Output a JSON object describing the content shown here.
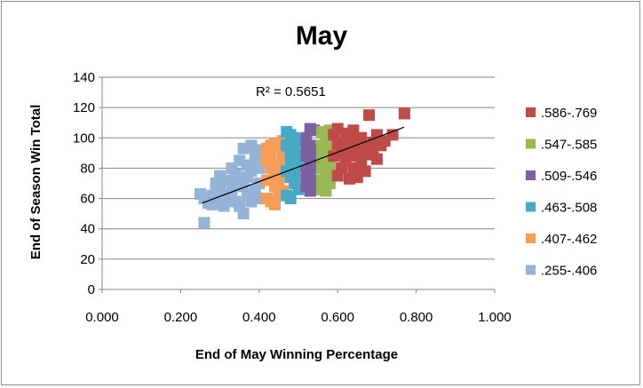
{
  "chart_data": {
    "type": "scatter",
    "title": "May",
    "xlabel": "End of May Winning Percentage",
    "ylabel": "End of Season Win Total",
    "xlim": [
      0.0,
      1.0
    ],
    "ylim": [
      0,
      140
    ],
    "x_ticks": [
      "0.000",
      "0.200",
      "0.400",
      "0.600",
      "0.800",
      "1.000"
    ],
    "y_ticks": [
      "0",
      "20",
      "40",
      "60",
      "80",
      "100",
      "120",
      "140"
    ],
    "grid": "horizontal",
    "legend_position": "right",
    "annotation": "R² = 0.5651",
    "trendline": {
      "type": "linear",
      "r_squared": 0.5651,
      "x": [
        0.255,
        0.769
      ],
      "y": [
        57,
        107
      ]
    },
    "series": [
      {
        "name": ".586-.769",
        "color": "#be4b48",
        "points": [
          [
            0.59,
            102
          ],
          [
            0.6,
            106
          ],
          [
            0.62,
            103
          ],
          [
            0.63,
            98
          ],
          [
            0.64,
            105
          ],
          [
            0.6,
            96
          ],
          [
            0.61,
            90
          ],
          [
            0.62,
            85
          ],
          [
            0.63,
            92
          ],
          [
            0.64,
            88
          ],
          [
            0.65,
            95
          ],
          [
            0.66,
            100
          ],
          [
            0.67,
            94
          ],
          [
            0.68,
            89
          ],
          [
            0.69,
            97
          ],
          [
            0.7,
            102
          ],
          [
            0.71,
            95
          ],
          [
            0.72,
            98
          ],
          [
            0.74,
            102
          ],
          [
            0.77,
            116
          ],
          [
            0.68,
            115
          ],
          [
            0.6,
            75
          ],
          [
            0.61,
            80
          ],
          [
            0.63,
            73
          ],
          [
            0.65,
            74
          ],
          [
            0.66,
            82
          ],
          [
            0.67,
            78
          ],
          [
            0.7,
            86
          ],
          [
            0.62,
            95
          ],
          [
            0.64,
            80
          ],
          [
            0.66,
            88
          ],
          [
            0.69,
            90
          ],
          [
            0.59,
            88
          ],
          [
            0.65,
            100
          ]
        ]
      },
      {
        "name": ".547-.585",
        "color": "#98b954",
        "points": [
          [
            0.56,
            104
          ],
          [
            0.57,
            102
          ],
          [
            0.58,
            100
          ],
          [
            0.56,
            95
          ],
          [
            0.57,
            90
          ],
          [
            0.58,
            85
          ],
          [
            0.56,
            80
          ],
          [
            0.57,
            75
          ],
          [
            0.58,
            70
          ],
          [
            0.56,
            66
          ],
          [
            0.57,
            65
          ],
          [
            0.58,
            94
          ],
          [
            0.56,
            88
          ],
          [
            0.57,
            84
          ],
          [
            0.58,
            78
          ],
          [
            0.56,
            72
          ],
          [
            0.57,
            97
          ],
          [
            0.58,
            105
          ]
        ]
      },
      {
        "name": ".509-.546",
        "color": "#7d60a0",
        "points": [
          [
            0.53,
            106
          ],
          [
            0.54,
            105
          ],
          [
            0.52,
            100
          ],
          [
            0.53,
            95
          ],
          [
            0.54,
            92
          ],
          [
            0.52,
            88
          ],
          [
            0.53,
            85
          ],
          [
            0.54,
            82
          ],
          [
            0.52,
            78
          ],
          [
            0.53,
            75
          ],
          [
            0.54,
            72
          ],
          [
            0.52,
            68
          ],
          [
            0.53,
            65
          ],
          [
            0.54,
            66
          ],
          [
            0.52,
            94
          ],
          [
            0.53,
            80
          ],
          [
            0.54,
            88
          ],
          [
            0.52,
            73
          ]
        ]
      },
      {
        "name": ".463-.508",
        "color": "#46aac5",
        "points": [
          [
            0.47,
            104
          ],
          [
            0.48,
            102
          ],
          [
            0.49,
            100
          ],
          [
            0.5,
            98
          ],
          [
            0.47,
            95
          ],
          [
            0.48,
            90
          ],
          [
            0.49,
            86
          ],
          [
            0.5,
            82
          ],
          [
            0.47,
            78
          ],
          [
            0.48,
            74
          ],
          [
            0.49,
            70
          ],
          [
            0.5,
            66
          ],
          [
            0.47,
            62
          ],
          [
            0.48,
            60
          ],
          [
            0.49,
            92
          ],
          [
            0.5,
            88
          ],
          [
            0.48,
            84
          ],
          [
            0.49,
            76
          ]
        ]
      },
      {
        "name": ".407-.462",
        "color": "#f59d56",
        "points": [
          [
            0.42,
            93
          ],
          [
            0.43,
            95
          ],
          [
            0.44,
            96
          ],
          [
            0.45,
            94
          ],
          [
            0.46,
            98
          ],
          [
            0.42,
            85
          ],
          [
            0.43,
            80
          ],
          [
            0.44,
            75
          ],
          [
            0.45,
            70
          ],
          [
            0.46,
            65
          ],
          [
            0.42,
            60
          ],
          [
            0.43,
            58
          ],
          [
            0.44,
            56
          ],
          [
            0.45,
            62
          ],
          [
            0.46,
            88
          ],
          [
            0.43,
            88
          ],
          [
            0.44,
            68
          ],
          [
            0.45,
            82
          ],
          [
            0.42,
            72
          ],
          [
            0.46,
            76
          ]
        ]
      },
      {
        "name": ".255-.406",
        "color": "#95b3d7",
        "points": [
          [
            0.26,
            44
          ],
          [
            0.25,
            63
          ],
          [
            0.26,
            60
          ],
          [
            0.27,
            57
          ],
          [
            0.28,
            62
          ],
          [
            0.29,
            66
          ],
          [
            0.3,
            68
          ],
          [
            0.3,
            58
          ],
          [
            0.31,
            55
          ],
          [
            0.32,
            60
          ],
          [
            0.33,
            64
          ],
          [
            0.34,
            70
          ],
          [
            0.35,
            72
          ],
          [
            0.36,
            68
          ],
          [
            0.37,
            62
          ],
          [
            0.38,
            58
          ],
          [
            0.39,
            65
          ],
          [
            0.4,
            70
          ],
          [
            0.33,
            80
          ],
          [
            0.35,
            85
          ],
          [
            0.37,
            82
          ],
          [
            0.39,
            88
          ],
          [
            0.4,
            92
          ],
          [
            0.38,
            95
          ],
          [
            0.36,
            93
          ],
          [
            0.34,
            76
          ],
          [
            0.32,
            72
          ],
          [
            0.3,
            75
          ],
          [
            0.36,
            50
          ],
          [
            0.35,
            55
          ],
          [
            0.37,
            74
          ],
          [
            0.38,
            78
          ],
          [
            0.39,
            84
          ],
          [
            0.4,
            80
          ],
          [
            0.31,
            62
          ],
          [
            0.28,
            56
          ],
          [
            0.33,
            68
          ],
          [
            0.34,
            58
          ],
          [
            0.4,
            60
          ],
          [
            0.29,
            70
          ]
        ]
      }
    ]
  }
}
